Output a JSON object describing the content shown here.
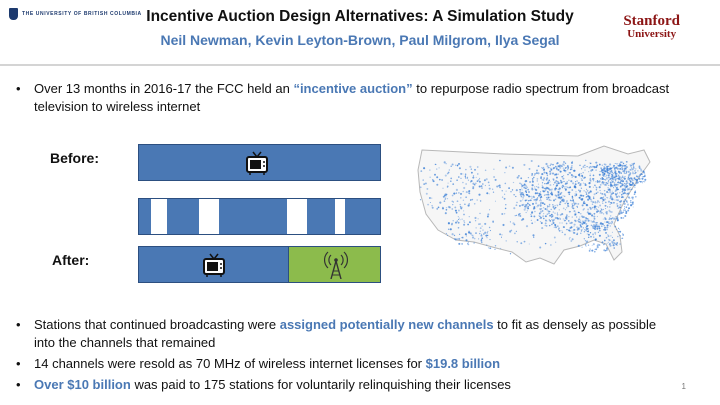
{
  "header": {
    "university": "THE UNIVERSITY OF BRITISH COLUMBIA",
    "title": "Incentive Auction Design Alternatives: A Simulation Study",
    "authors": "Neil Newman, Kevin Leyton-Brown, Paul Milgrom, Ilya Segal",
    "stanford_line1": "Stanford",
    "stanford_line2": "University"
  },
  "bullets": {
    "b1": {
      "pre": "Over 13 months in 2016-17 the FCC held an ",
      "hl": "“incentive auction”",
      "post": " to repurpose radio spectrum from broadcast television to wireless internet"
    },
    "b2": {
      "pre": "Stations that continued broadcasting were ",
      "hl": "assigned potentially new channels",
      "post": " to fit as densely as possible into the channels that remained"
    },
    "b3": {
      "pre": "14 channels were resold as 70 MHz of wireless internet licenses for ",
      "hl": "$19.8 billion",
      "post": ""
    },
    "b4": {
      "pre": "",
      "hl": "Over $10 billion",
      "post": " was paid to 175 stations for voluntarily relinquishing their licenses"
    }
  },
  "diagram": {
    "before_label": "Before:",
    "after_label": "After:"
  },
  "icons": [
    "tv-icon",
    "radio-tower-icon",
    "us-coverage-map"
  ],
  "colors": {
    "accent": "#4a78b4",
    "green": "#8cbb4c",
    "stanford": "#8c1515"
  },
  "page_number": "1"
}
